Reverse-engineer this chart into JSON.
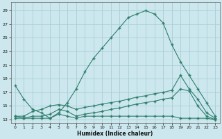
{
  "title": "",
  "xlabel": "Humidex (Indice chaleur)",
  "bg_color": "#cce8ee",
  "grid_color": "#aacdd6",
  "line_color": "#2e7d6b",
  "xlim": [
    -0.5,
    23.5
  ],
  "ylim": [
    12.5,
    30.2
  ],
  "xticks": [
    0,
    1,
    2,
    3,
    4,
    5,
    6,
    7,
    8,
    9,
    10,
    11,
    12,
    13,
    14,
    15,
    16,
    17,
    18,
    19,
    20,
    21,
    22,
    23
  ],
  "yticks": [
    13,
    15,
    17,
    19,
    21,
    23,
    25,
    27,
    29
  ],
  "curve1_x": [
    0,
    1,
    2,
    3,
    4,
    5,
    6,
    7,
    8,
    9,
    10,
    11,
    12,
    13,
    14,
    15,
    16,
    17,
    18,
    19,
    20,
    21,
    22,
    23
  ],
  "curve1_y": [
    18.0,
    16.0,
    14.5,
    14.0,
    13.2,
    14.0,
    15.5,
    17.5,
    20.0,
    22.0,
    23.5,
    25.0,
    26.5,
    28.0,
    28.5,
    29.0,
    28.5,
    27.2,
    24.0,
    21.5,
    19.5,
    17.5,
    15.5,
    13.5
  ],
  "curve2_x": [
    0,
    1,
    2,
    3,
    4,
    5,
    6,
    7,
    8,
    9,
    10,
    11,
    12,
    13,
    14,
    15,
    16,
    17,
    18,
    19,
    20,
    21,
    22,
    23
  ],
  "curve2_y": [
    13.5,
    13.5,
    14.2,
    14.5,
    15.0,
    15.2,
    15.0,
    14.5,
    14.8,
    15.0,
    15.3,
    15.5,
    15.7,
    16.0,
    16.3,
    16.5,
    16.8,
    17.0,
    17.3,
    19.5,
    17.5,
    16.0,
    14.0,
    13.2
  ],
  "curve3_x": [
    0,
    1,
    2,
    3,
    4,
    5,
    6,
    7,
    8,
    9,
    10,
    11,
    12,
    13,
    14,
    15,
    16,
    17,
    18,
    19,
    20,
    21,
    22,
    23
  ],
  "curve3_y": [
    13.2,
    13.2,
    13.5,
    13.5,
    13.8,
    14.5,
    14.2,
    13.5,
    13.8,
    14.0,
    14.2,
    14.5,
    14.7,
    15.0,
    15.3,
    15.5,
    15.7,
    16.0,
    16.2,
    17.5,
    17.2,
    15.0,
    13.5,
    13.0
  ],
  "curve4_x": [
    0,
    1,
    2,
    3,
    4,
    5,
    6,
    7,
    8,
    9,
    10,
    11,
    12,
    13,
    14,
    15,
    16,
    17,
    18,
    19,
    20,
    21,
    22,
    23
  ],
  "curve4_y": [
    13.5,
    13.2,
    13.2,
    13.2,
    13.2,
    13.8,
    13.5,
    13.2,
    13.5,
    13.5,
    13.5,
    13.5,
    13.5,
    13.5,
    13.5,
    13.5,
    13.5,
    13.5,
    13.5,
    13.2,
    13.2,
    13.2,
    13.2,
    13.0
  ]
}
